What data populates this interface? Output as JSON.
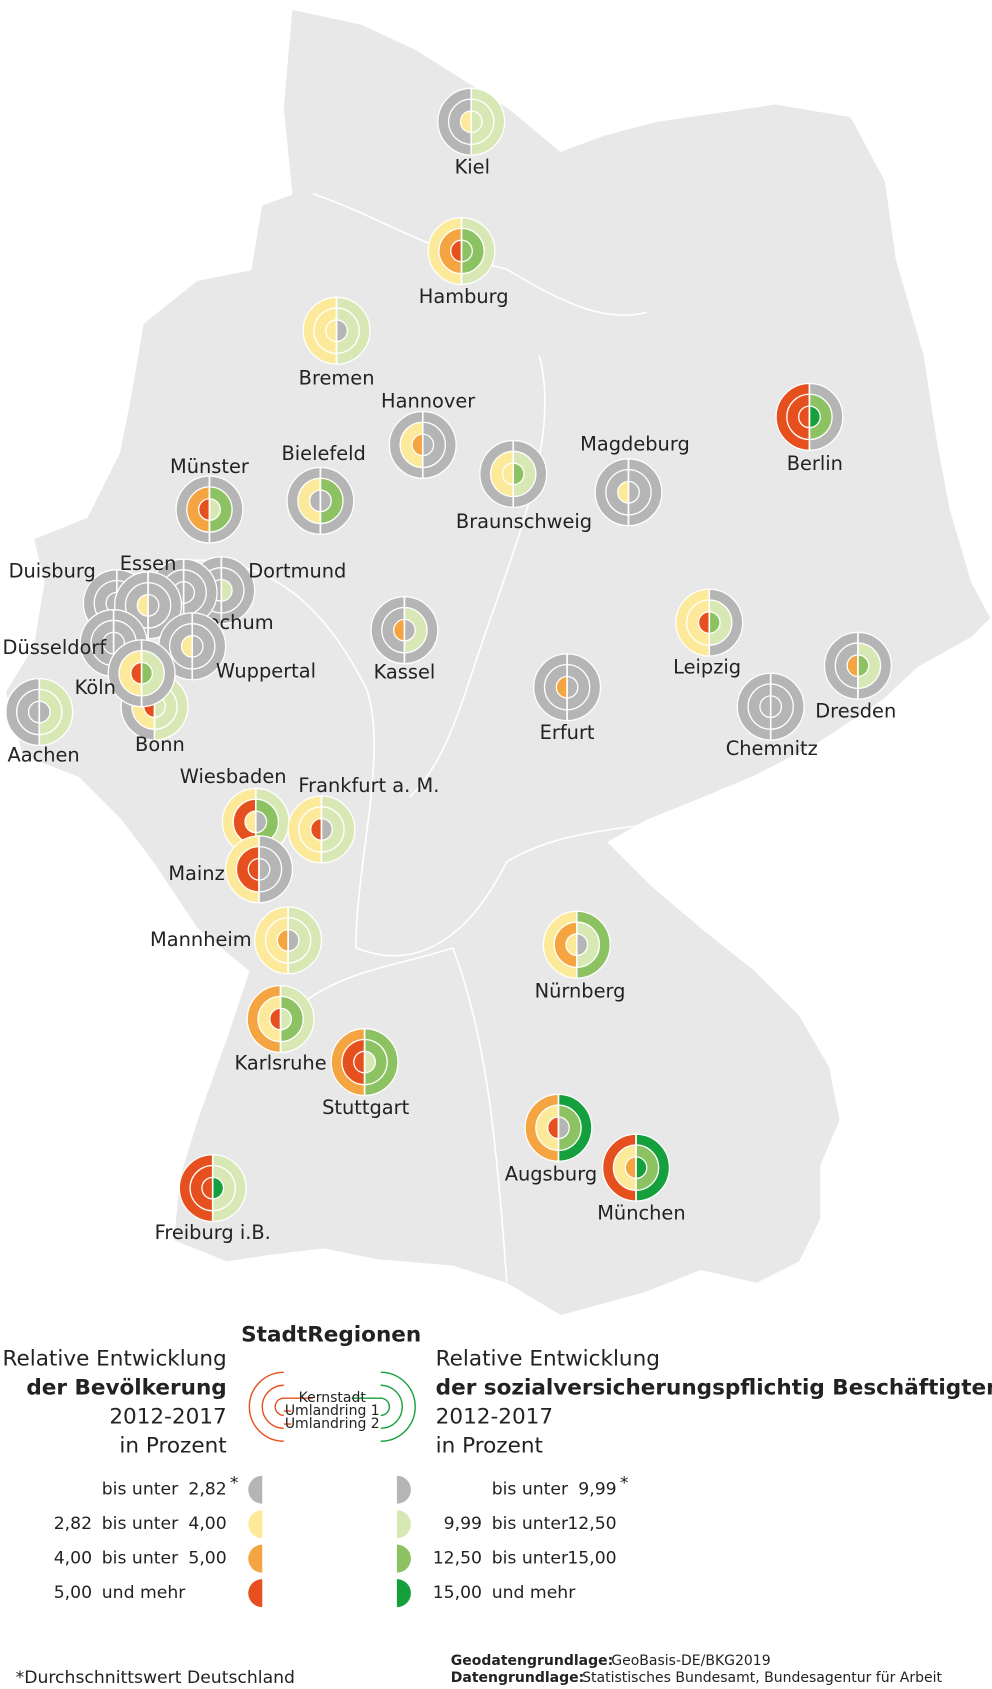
{
  "legend": {
    "title": "StadtRegionen",
    "rings": [
      "Kernstadt",
      "Umlandring 1",
      "Umlandring 2"
    ],
    "footnote_marker": "*",
    "population": {
      "heading": [
        "Relative Entwicklung",
        "der Bevölkerung",
        "2012-2017",
        "in Prozent"
      ],
      "colors": [
        "#b5b5b5",
        "#fde99a",
        "#f4a541",
        "#e6501e"
      ],
      "rows": [
        [
          "bis unter",
          "2,82"
        ],
        [
          "2,82",
          "bis unter",
          "4,00"
        ],
        [
          "4,00",
          "bis unter",
          "5,00"
        ],
        [
          "5,00",
          "und mehr"
        ]
      ]
    },
    "employment": {
      "heading": [
        "Relative Entwicklung",
        "der sozialversicherungspflichtig Beschäftigten",
        "2012-2017",
        "in Prozent"
      ],
      "colors": [
        "#b5b5b5",
        "#d8e8b5",
        "#8dc262",
        "#16a03d"
      ],
      "rows": [
        [
          "bis unter",
          "9,99"
        ],
        [
          "9,99",
          "bis unter",
          "12,50"
        ],
        [
          "12,50",
          "bis unter",
          "15,00"
        ],
        [
          "15,00",
          "und mehr"
        ]
      ]
    }
  },
  "cities": [
    {
      "name": "Kiel",
      "population": [
        1,
        0,
        0
      ],
      "employment": [
        1,
        1,
        1
      ]
    },
    {
      "name": "Hamburg",
      "population": [
        3,
        2,
        1
      ],
      "employment": [
        2,
        2,
        1
      ]
    },
    {
      "name": "Bremen",
      "population": [
        1,
        1,
        1
      ],
      "employment": [
        0,
        1,
        1
      ]
    },
    {
      "name": "Hannover",
      "population": [
        2,
        1,
        0
      ],
      "employment": [
        0,
        0,
        0
      ]
    },
    {
      "name": "Bielefeld",
      "population": [
        0,
        1,
        0
      ],
      "employment": [
        0,
        2,
        0
      ]
    },
    {
      "name": "Münster",
      "population": [
        3,
        2,
        0
      ],
      "employment": [
        1,
        2,
        0
      ]
    },
    {
      "name": "Braunschweig",
      "population": [
        1,
        1,
        0
      ],
      "employment": [
        2,
        1,
        0
      ]
    },
    {
      "name": "Magdeburg",
      "population": [
        1,
        0,
        0
      ],
      "employment": [
        0,
        0,
        0
      ]
    },
    {
      "name": "Berlin",
      "population": [
        3,
        3,
        3
      ],
      "employment": [
        3,
        2,
        0
      ]
    },
    {
      "name": "Duisburg",
      "population": [
        0,
        0,
        0
      ],
      "employment": [
        0,
        0,
        0
      ]
    },
    {
      "name": "Dortmund",
      "population": [
        0,
        0,
        0
      ],
      "employment": [
        1,
        0,
        0
      ]
    },
    {
      "name": "Bochum",
      "population": [
        0,
        0,
        0
      ],
      "employment": [
        0,
        0,
        0
      ]
    },
    {
      "name": "Essen",
      "population": [
        1,
        0,
        0
      ],
      "employment": [
        0,
        0,
        0
      ]
    },
    {
      "name": "Düsseldorf",
      "population": [
        0,
        0,
        0
      ],
      "employment": [
        0,
        0,
        0
      ]
    },
    {
      "name": "Wuppertal",
      "population": [
        1,
        0,
        0
      ],
      "employment": [
        0,
        0,
        0
      ]
    },
    {
      "name": "Aachen",
      "population": [
        0,
        0,
        0
      ],
      "employment": [
        0,
        1,
        1
      ]
    },
    {
      "name": "Bonn",
      "population": [
        3,
        1,
        0
      ],
      "employment": [
        1,
        1,
        1
      ]
    },
    {
      "name": "Köln",
      "population": [
        3,
        1,
        0
      ],
      "employment": [
        2,
        1,
        0
      ]
    },
    {
      "name": "Kassel",
      "population": [
        2,
        0,
        0
      ],
      "employment": [
        0,
        1,
        0
      ]
    },
    {
      "name": "Erfurt",
      "population": [
        2,
        0,
        0
      ],
      "employment": [
        0,
        0,
        0
      ]
    },
    {
      "name": "Leipzig",
      "population": [
        3,
        1,
        1
      ],
      "employment": [
        2,
        1,
        0
      ]
    },
    {
      "name": "Dresden",
      "population": [
        2,
        0,
        0
      ],
      "employment": [
        2,
        1,
        0
      ]
    },
    {
      "name": "Chemnitz",
      "population": [
        0,
        0,
        0
      ],
      "employment": [
        0,
        0,
        0
      ]
    },
    {
      "name": "Wiesbaden",
      "population": [
        1,
        3,
        1
      ],
      "employment": [
        0,
        2,
        1
      ]
    },
    {
      "name": "Frankfurt a. M.",
      "population": [
        3,
        1,
        1
      ],
      "employment": [
        0,
        1,
        1
      ]
    },
    {
      "name": "Mainz",
      "population": [
        3,
        3,
        1
      ],
      "employment": [
        0,
        0,
        0
      ]
    },
    {
      "name": "Mannheim",
      "population": [
        2,
        1,
        1
      ],
      "employment": [
        0,
        1,
        1
      ]
    },
    {
      "name": "Nürnberg",
      "population": [
        1,
        2,
        1
      ],
      "employment": [
        0,
        1,
        2
      ]
    },
    {
      "name": "Karlsruhe",
      "population": [
        3,
        1,
        2
      ],
      "employment": [
        1,
        2,
        1
      ]
    },
    {
      "name": "Stuttgart",
      "population": [
        3,
        3,
        2
      ],
      "employment": [
        1,
        2,
        2
      ]
    },
    {
      "name": "Augsburg",
      "population": [
        3,
        1,
        2
      ],
      "employment": [
        0,
        2,
        3
      ]
    },
    {
      "name": "München",
      "population": [
        2,
        1,
        3
      ],
      "employment": [
        3,
        2,
        3
      ]
    },
    {
      "name": "Freiburg i.B.",
      "population": [
        3,
        3,
        3
      ],
      "employment": [
        3,
        1,
        1
      ]
    }
  ],
  "footnote": "*Durchschnittswert Deutschland",
  "sources": [
    {
      "label": "Geodatengrundlage:",
      "text": "GeoBasis-DE/BKG2019"
    },
    {
      "label": "Datengrundlage:",
      "text": "Statistisches Bundesamt, Bundesagentur für Arbeit"
    }
  ]
}
